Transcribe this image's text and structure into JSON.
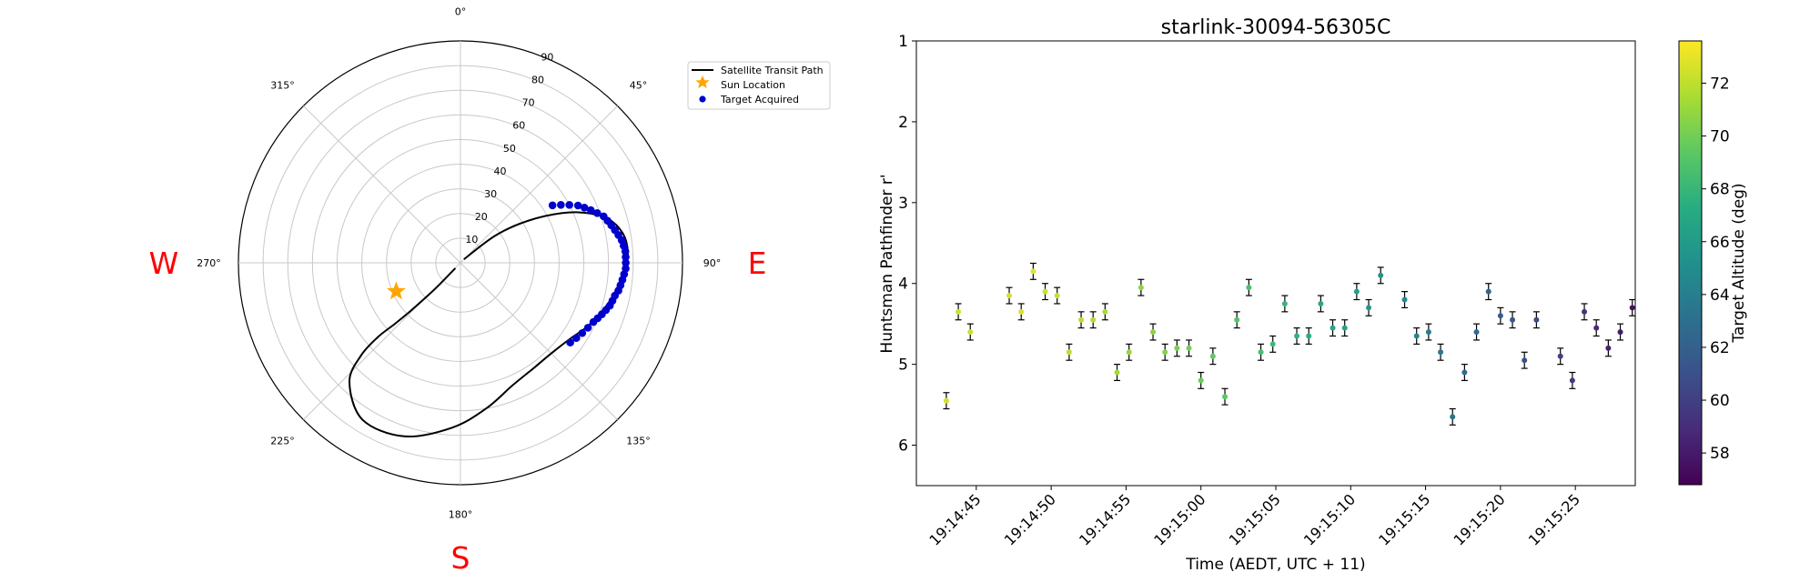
{
  "chart_data": [
    {
      "type": "polar",
      "compass": {
        "west": "W",
        "east": "E",
        "south": "S"
      },
      "azimuth_labels": [
        "0°",
        "45°",
        "90°",
        "135°",
        "180°",
        "225°",
        "270°",
        "315°"
      ],
      "radial_labels": [
        "10",
        "20",
        "30",
        "40",
        "50",
        "60",
        "70",
        "80",
        "90"
      ],
      "legend": {
        "position": "upper-right",
        "entries": [
          {
            "label": "Satellite Transit Path",
            "marker": "line",
            "color": "#000000"
          },
          {
            "label": "Sun Location",
            "marker": "star",
            "color": "#ffa500"
          },
          {
            "label": "Target Acquired",
            "marker": "circle",
            "color": "#0000cd"
          }
        ]
      },
      "transit_path_zenith": [
        [
          45,
          2
        ],
        [
          52,
          18
        ],
        [
          58,
          32
        ],
        [
          64,
          46
        ],
        [
          69,
          56
        ],
        [
          74,
          63
        ],
        [
          80,
          67
        ],
        [
          86,
          68
        ],
        [
          91,
          67
        ],
        [
          97,
          65
        ],
        [
          103,
          63
        ],
        [
          108,
          61
        ],
        [
          113,
          59
        ],
        [
          118,
          57
        ],
        [
          125,
          54
        ],
        [
          135,
          52
        ],
        [
          145,
          52
        ],
        [
          157,
          54
        ],
        [
          170,
          60
        ],
        [
          183,
          67
        ],
        [
          198,
          74
        ],
        [
          212,
          75
        ],
        [
          223,
          66
        ],
        [
          227,
          55
        ],
        [
          228,
          45
        ],
        [
          227,
          36
        ],
        [
          226,
          28
        ],
        [
          225,
          20
        ],
        [
          224,
          12
        ],
        [
          224,
          3
        ]
      ],
      "sun_location_zenith": [
        246,
        28.5
      ],
      "target_acquired_zenith": [
        [
          58,
          44
        ],
        [
          60,
          47
        ],
        [
          62,
          50
        ],
        [
          64,
          53
        ],
        [
          66,
          55
        ],
        [
          68,
          57
        ],
        [
          70,
          59
        ],
        [
          72,
          61
        ],
        [
          74,
          62
        ],
        [
          76,
          63
        ],
        [
          78,
          64
        ],
        [
          80,
          65
        ],
        [
          82,
          66
        ],
        [
          84,
          66.5
        ],
        [
          86,
          67
        ],
        [
          88,
          67
        ],
        [
          90,
          67
        ],
        [
          92,
          67
        ],
        [
          94,
          66.5
        ],
        [
          96,
          66
        ],
        [
          98,
          65.5
        ],
        [
          100,
          65
        ],
        [
          102,
          64
        ],
        [
          104,
          63.5
        ],
        [
          106,
          63
        ],
        [
          108,
          62
        ],
        [
          110,
          61
        ],
        [
          112,
          60
        ],
        [
          114,
          59
        ],
        [
          117,
          58
        ],
        [
          120,
          57
        ],
        [
          123,
          56
        ],
        [
          126,
          55
        ]
      ]
    },
    {
      "type": "scatter",
      "title": "starlink-30094-56305C",
      "xlabel": "Time (AEDT, UTC + 11)",
      "ylabel": "Huntsman Pathfinder r'",
      "y_inverted": true,
      "ylim": [
        6.5,
        1
      ],
      "yticks": [
        1,
        2,
        3,
        4,
        5,
        6
      ],
      "xlim": [
        "19:14:41",
        "19:15:29"
      ],
      "xticks": [
        "19:14:45",
        "19:14:50",
        "19:14:55",
        "19:15:00",
        "19:15:05",
        "19:15:10",
        "19:15:15",
        "19:15:20",
        "19:15:25"
      ],
      "y_error": 0.1,
      "colorbar": {
        "label": "Target Altitude (deg)",
        "colormap": "viridis",
        "range": [
          56.8,
          73.6
        ],
        "ticks": [
          58,
          60,
          62,
          64,
          66,
          68,
          70,
          72
        ]
      },
      "points": [
        {
          "x": "19:14:43.0",
          "y": 5.45,
          "altitude": 72.5
        },
        {
          "x": "19:14:43.8",
          "y": 4.35,
          "altitude": 72.4
        },
        {
          "x": "19:14:44.6",
          "y": 4.6,
          "altitude": 72.2
        },
        {
          "x": "19:14:47.2",
          "y": 4.15,
          "altitude": 72.5
        },
        {
          "x": "19:14:48.0",
          "y": 4.35,
          "altitude": 72.6
        },
        {
          "x": "19:14:48.8",
          "y": 3.85,
          "altitude": 72.8
        },
        {
          "x": "19:14:49.6",
          "y": 4.1,
          "altitude": 72.4
        },
        {
          "x": "19:14:50.4",
          "y": 4.15,
          "altitude": 72.2
        },
        {
          "x": "19:14:51.2",
          "y": 4.85,
          "altitude": 72.0
        },
        {
          "x": "19:14:52.0",
          "y": 4.45,
          "altitude": 71.8
        },
        {
          "x": "19:14:52.8",
          "y": 4.45,
          "altitude": 71.6
        },
        {
          "x": "19:14:53.6",
          "y": 4.35,
          "altitude": 71.4
        },
        {
          "x": "19:14:54.4",
          "y": 5.1,
          "altitude": 71.2
        },
        {
          "x": "19:14:55.2",
          "y": 4.85,
          "altitude": 71.0
        },
        {
          "x": "19:14:56.0",
          "y": 4.05,
          "altitude": 70.8
        },
        {
          "x": "19:14:56.8",
          "y": 4.6,
          "altitude": 70.6
        },
        {
          "x": "19:14:57.6",
          "y": 4.85,
          "altitude": 70.4
        },
        {
          "x": "19:14:58.4",
          "y": 4.8,
          "altitude": 70.2
        },
        {
          "x": "19:14:59.2",
          "y": 4.8,
          "altitude": 70.0
        },
        {
          "x": "19:15:00.0",
          "y": 5.2,
          "altitude": 69.7
        },
        {
          "x": "19:15:00.8",
          "y": 4.9,
          "altitude": 69.5
        },
        {
          "x": "19:15:01.6",
          "y": 5.4,
          "altitude": 69.3
        },
        {
          "x": "19:15:02.4",
          "y": 4.45,
          "altitude": 69.0
        },
        {
          "x": "19:15:03.2",
          "y": 4.05,
          "altitude": 68.8
        },
        {
          "x": "19:15:04.0",
          "y": 4.85,
          "altitude": 68.5
        },
        {
          "x": "19:15:04.8",
          "y": 4.75,
          "altitude": 68.2
        },
        {
          "x": "19:15:05.6",
          "y": 4.25,
          "altitude": 68.0
        },
        {
          "x": "19:15:06.4",
          "y": 4.65,
          "altitude": 67.7
        },
        {
          "x": "19:15:07.2",
          "y": 4.65,
          "altitude": 67.4
        },
        {
          "x": "19:15:08.0",
          "y": 4.25,
          "altitude": 67.1
        },
        {
          "x": "19:15:08.8",
          "y": 4.55,
          "altitude": 66.8
        },
        {
          "x": "19:15:09.6",
          "y": 4.55,
          "altitude": 66.5
        },
        {
          "x": "19:15:10.4",
          "y": 4.1,
          "altitude": 66.2
        },
        {
          "x": "19:15:11.2",
          "y": 4.3,
          "altitude": 65.8
        },
        {
          "x": "19:15:12.0",
          "y": 3.9,
          "altitude": 65.5
        },
        {
          "x": "19:15:13.6",
          "y": 4.2,
          "altitude": 64.8
        },
        {
          "x": "19:15:14.4",
          "y": 4.65,
          "altitude": 64.4
        },
        {
          "x": "19:15:15.2",
          "y": 4.6,
          "altitude": 64.0
        },
        {
          "x": "19:15:16.0",
          "y": 4.85,
          "altitude": 63.6
        },
        {
          "x": "19:15:16.8",
          "y": 5.65,
          "altitude": 63.3
        },
        {
          "x": "19:15:17.6",
          "y": 5.1,
          "altitude": 62.9
        },
        {
          "x": "19:15:18.4",
          "y": 4.6,
          "altitude": 62.6
        },
        {
          "x": "19:15:19.2",
          "y": 4.1,
          "altitude": 62.2
        },
        {
          "x": "19:15:20.0",
          "y": 4.4,
          "altitude": 61.8
        },
        {
          "x": "19:15:20.8",
          "y": 4.45,
          "altitude": 61.5
        },
        {
          "x": "19:15:21.6",
          "y": 4.95,
          "altitude": 61.1
        },
        {
          "x": "19:15:22.4",
          "y": 4.45,
          "altitude": 60.7
        },
        {
          "x": "19:15:24.0",
          "y": 4.9,
          "altitude": 60.0
        },
        {
          "x": "19:15:24.8",
          "y": 5.2,
          "altitude": 59.6
        },
        {
          "x": "19:15:25.6",
          "y": 4.35,
          "altitude": 59.2
        },
        {
          "x": "19:15:26.4",
          "y": 4.55,
          "altitude": 58.8
        },
        {
          "x": "19:15:27.2",
          "y": 4.8,
          "altitude": 58.4
        },
        {
          "x": "19:15:28.0",
          "y": 4.6,
          "altitude": 58.0
        },
        {
          "x": "19:15:28.8",
          "y": 4.3,
          "altitude": 57.6
        }
      ]
    }
  ]
}
